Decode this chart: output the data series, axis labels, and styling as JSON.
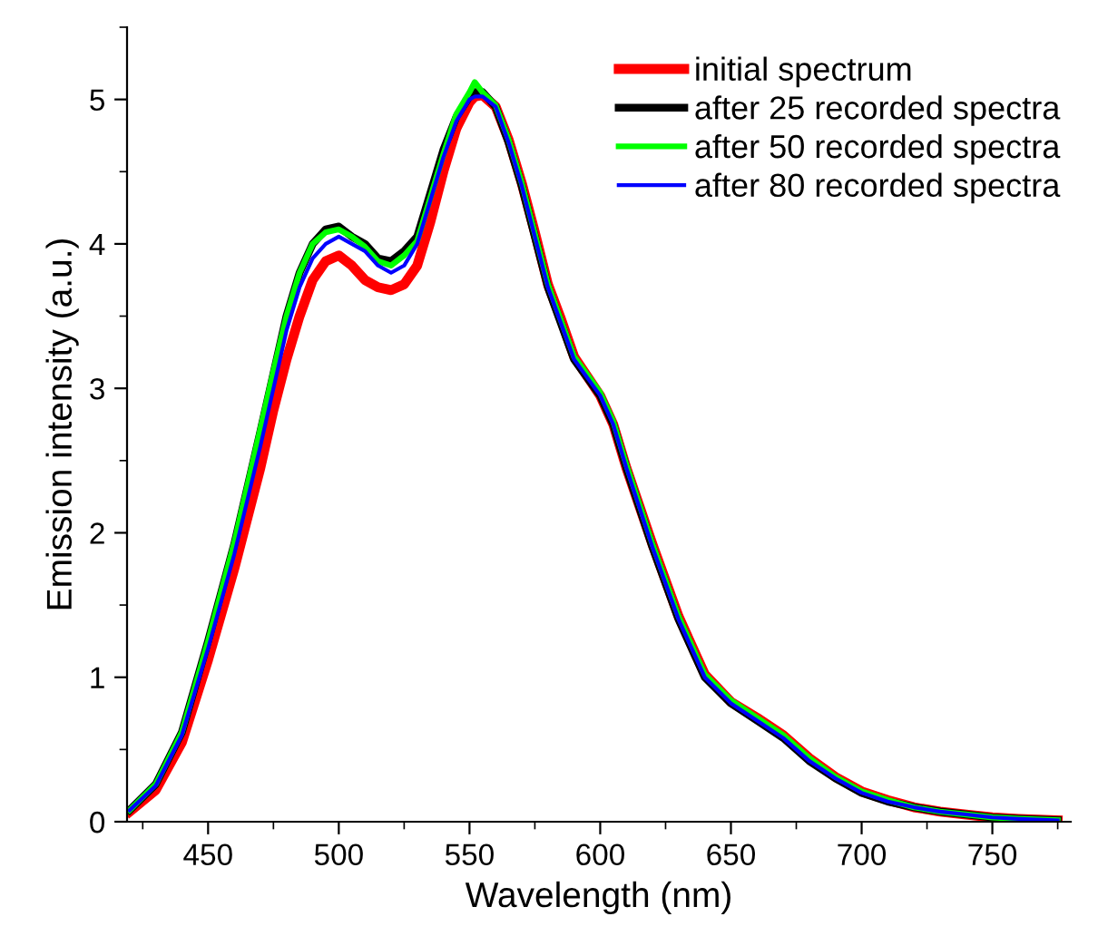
{
  "chart_data": {
    "type": "line",
    "xlabel": "Wavelength (nm)",
    "ylabel": "Emission intensity (a.u.)",
    "x": [
      420,
      430,
      440,
      450,
      460,
      470,
      475,
      480,
      485,
      490,
      495,
      500,
      505,
      510,
      515,
      520,
      525,
      530,
      535,
      540,
      545,
      550,
      552,
      555,
      560,
      565,
      570,
      575,
      580,
      585,
      590,
      600,
      605,
      610,
      620,
      630,
      640,
      650,
      660,
      670,
      680,
      690,
      700,
      710,
      720,
      730,
      740,
      750,
      760,
      775
    ],
    "series": [
      {
        "name": "initial spectrum",
        "color": "#ff0000",
        "values": [
          0.07,
          0.22,
          0.55,
          1.12,
          1.75,
          2.45,
          2.85,
          3.2,
          3.5,
          3.75,
          3.88,
          3.92,
          3.85,
          3.75,
          3.7,
          3.68,
          3.72,
          3.85,
          4.15,
          4.5,
          4.8,
          4.98,
          5.02,
          5.03,
          4.95,
          4.72,
          4.42,
          4.08,
          3.72,
          3.48,
          3.22,
          2.95,
          2.75,
          2.45,
          1.92,
          1.42,
          1.02,
          0.83,
          0.72,
          0.6,
          0.44,
          0.31,
          0.21,
          0.15,
          0.1,
          0.07,
          0.05,
          0.03,
          0.02,
          0.01
        ]
      },
      {
        "name": "after 25 recorded spectra",
        "color": "#000000",
        "values": [
          0.08,
          0.26,
          0.62,
          1.25,
          1.92,
          2.7,
          3.1,
          3.5,
          3.8,
          4.0,
          4.1,
          4.12,
          4.05,
          4.0,
          3.9,
          3.88,
          3.95,
          4.05,
          4.35,
          4.65,
          4.88,
          5.02,
          5.05,
          5.05,
          4.95,
          4.7,
          4.4,
          4.05,
          3.7,
          3.45,
          3.2,
          2.95,
          2.75,
          2.45,
          1.9,
          1.4,
          1.0,
          0.82,
          0.7,
          0.58,
          0.42,
          0.3,
          0.2,
          0.14,
          0.1,
          0.07,
          0.05,
          0.03,
          0.02,
          0.01
        ]
      },
      {
        "name": "after 50 recorded spectra",
        "color": "#00ff00",
        "values": [
          0.08,
          0.26,
          0.62,
          1.25,
          1.93,
          2.72,
          3.12,
          3.5,
          3.8,
          4.0,
          4.08,
          4.1,
          4.05,
          3.98,
          3.88,
          3.85,
          3.92,
          4.02,
          4.32,
          4.62,
          4.9,
          5.05,
          5.12,
          5.05,
          4.96,
          4.72,
          4.42,
          4.07,
          3.72,
          3.47,
          3.22,
          2.97,
          2.77,
          2.47,
          1.92,
          1.42,
          1.02,
          0.84,
          0.72,
          0.6,
          0.44,
          0.31,
          0.21,
          0.15,
          0.1,
          0.07,
          0.05,
          0.03,
          0.02,
          0.01
        ]
      },
      {
        "name": "after 80 recorded spectra",
        "color": "#0000ff",
        "values": [
          0.08,
          0.25,
          0.6,
          1.2,
          1.85,
          2.6,
          3.0,
          3.4,
          3.7,
          3.9,
          4.0,
          4.05,
          4.0,
          3.95,
          3.85,
          3.8,
          3.85,
          4.0,
          4.3,
          4.6,
          4.85,
          5.0,
          5.02,
          5.02,
          4.95,
          4.7,
          4.4,
          4.05,
          3.7,
          3.45,
          3.2,
          2.95,
          2.75,
          2.45,
          1.9,
          1.4,
          1.0,
          0.82,
          0.7,
          0.58,
          0.42,
          0.3,
          0.2,
          0.14,
          0.1,
          0.07,
          0.05,
          0.03,
          0.02,
          0.01
        ]
      }
    ],
    "xlim": [
      419,
      780
    ],
    "xticks": [
      450,
      500,
      550,
      600,
      650,
      700,
      750
    ],
    "ylim": [
      0,
      5.5
    ],
    "yticks": [
      0,
      1,
      2,
      3,
      4,
      5
    ],
    "grid": false,
    "legend": "top right",
    "marker": "none",
    "line_style": "solid"
  }
}
